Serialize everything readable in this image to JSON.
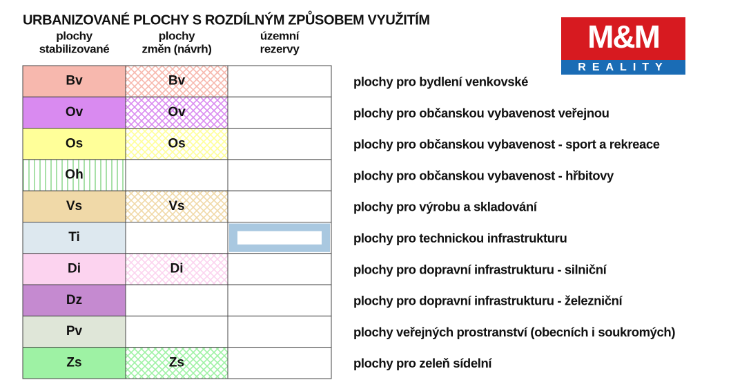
{
  "title": "URBANIZOVANÉ PLOCHY S ROZDÍLNÝM ZPŮSOBEM VYUŽITÍM",
  "columns": [
    [
      "plochy",
      "stabilizované"
    ],
    [
      "plochy",
      "změn (návrh)"
    ],
    [
      "územní",
      "rezervy"
    ]
  ],
  "logo": {
    "name": "M&M",
    "subtitle": "REALITY"
  },
  "rows": [
    {
      "stabilized": "Bv",
      "change": "Bv",
      "description": "plochy pro bydlení venkovské",
      "color": "#f7b8ae"
    },
    {
      "stabilized": "Ov",
      "change": "Ov",
      "description": "plochy pro občanskou vybavenost veřejnou",
      "color": "#d98af0"
    },
    {
      "stabilized": "Os",
      "change": "Os",
      "description": "plochy pro občanskou vybavenost - sport a rekreace",
      "color": "#ffff99"
    },
    {
      "stabilized": "Oh",
      "change": null,
      "description": "plochy pro občanskou vybavenost - hřbitovy",
      "color": "#a8e0a8",
      "pattern": "vertical-stripes"
    },
    {
      "stabilized": "Vs",
      "change": "Vs",
      "description": "plochy pro výrobu a skladování",
      "color": "#f0d9a8"
    },
    {
      "stabilized": "Ti",
      "change": null,
      "description": "plochy pro technickou infrastrukturu",
      "color": "#dde8ef",
      "reserve_color": "#a9c8e0"
    },
    {
      "stabilized": "Di",
      "change": "Di",
      "description": "plochy pro dopravní infrastrukturu - silniční",
      "color": "#fcd3ef"
    },
    {
      "stabilized": "Dz",
      "change": null,
      "description": "plochy pro dopravní infrastrukturu - železniční",
      "color": "#c58ad0"
    },
    {
      "stabilized": "Pv",
      "change": null,
      "description": "plochy veřejných prostranství (obecních i soukromých)",
      "color": "#dfe6d8"
    },
    {
      "stabilized": "Zs",
      "change": "Zs",
      "description": "plochy pro zeleň sídelní",
      "color": "#9ef2a4"
    }
  ]
}
